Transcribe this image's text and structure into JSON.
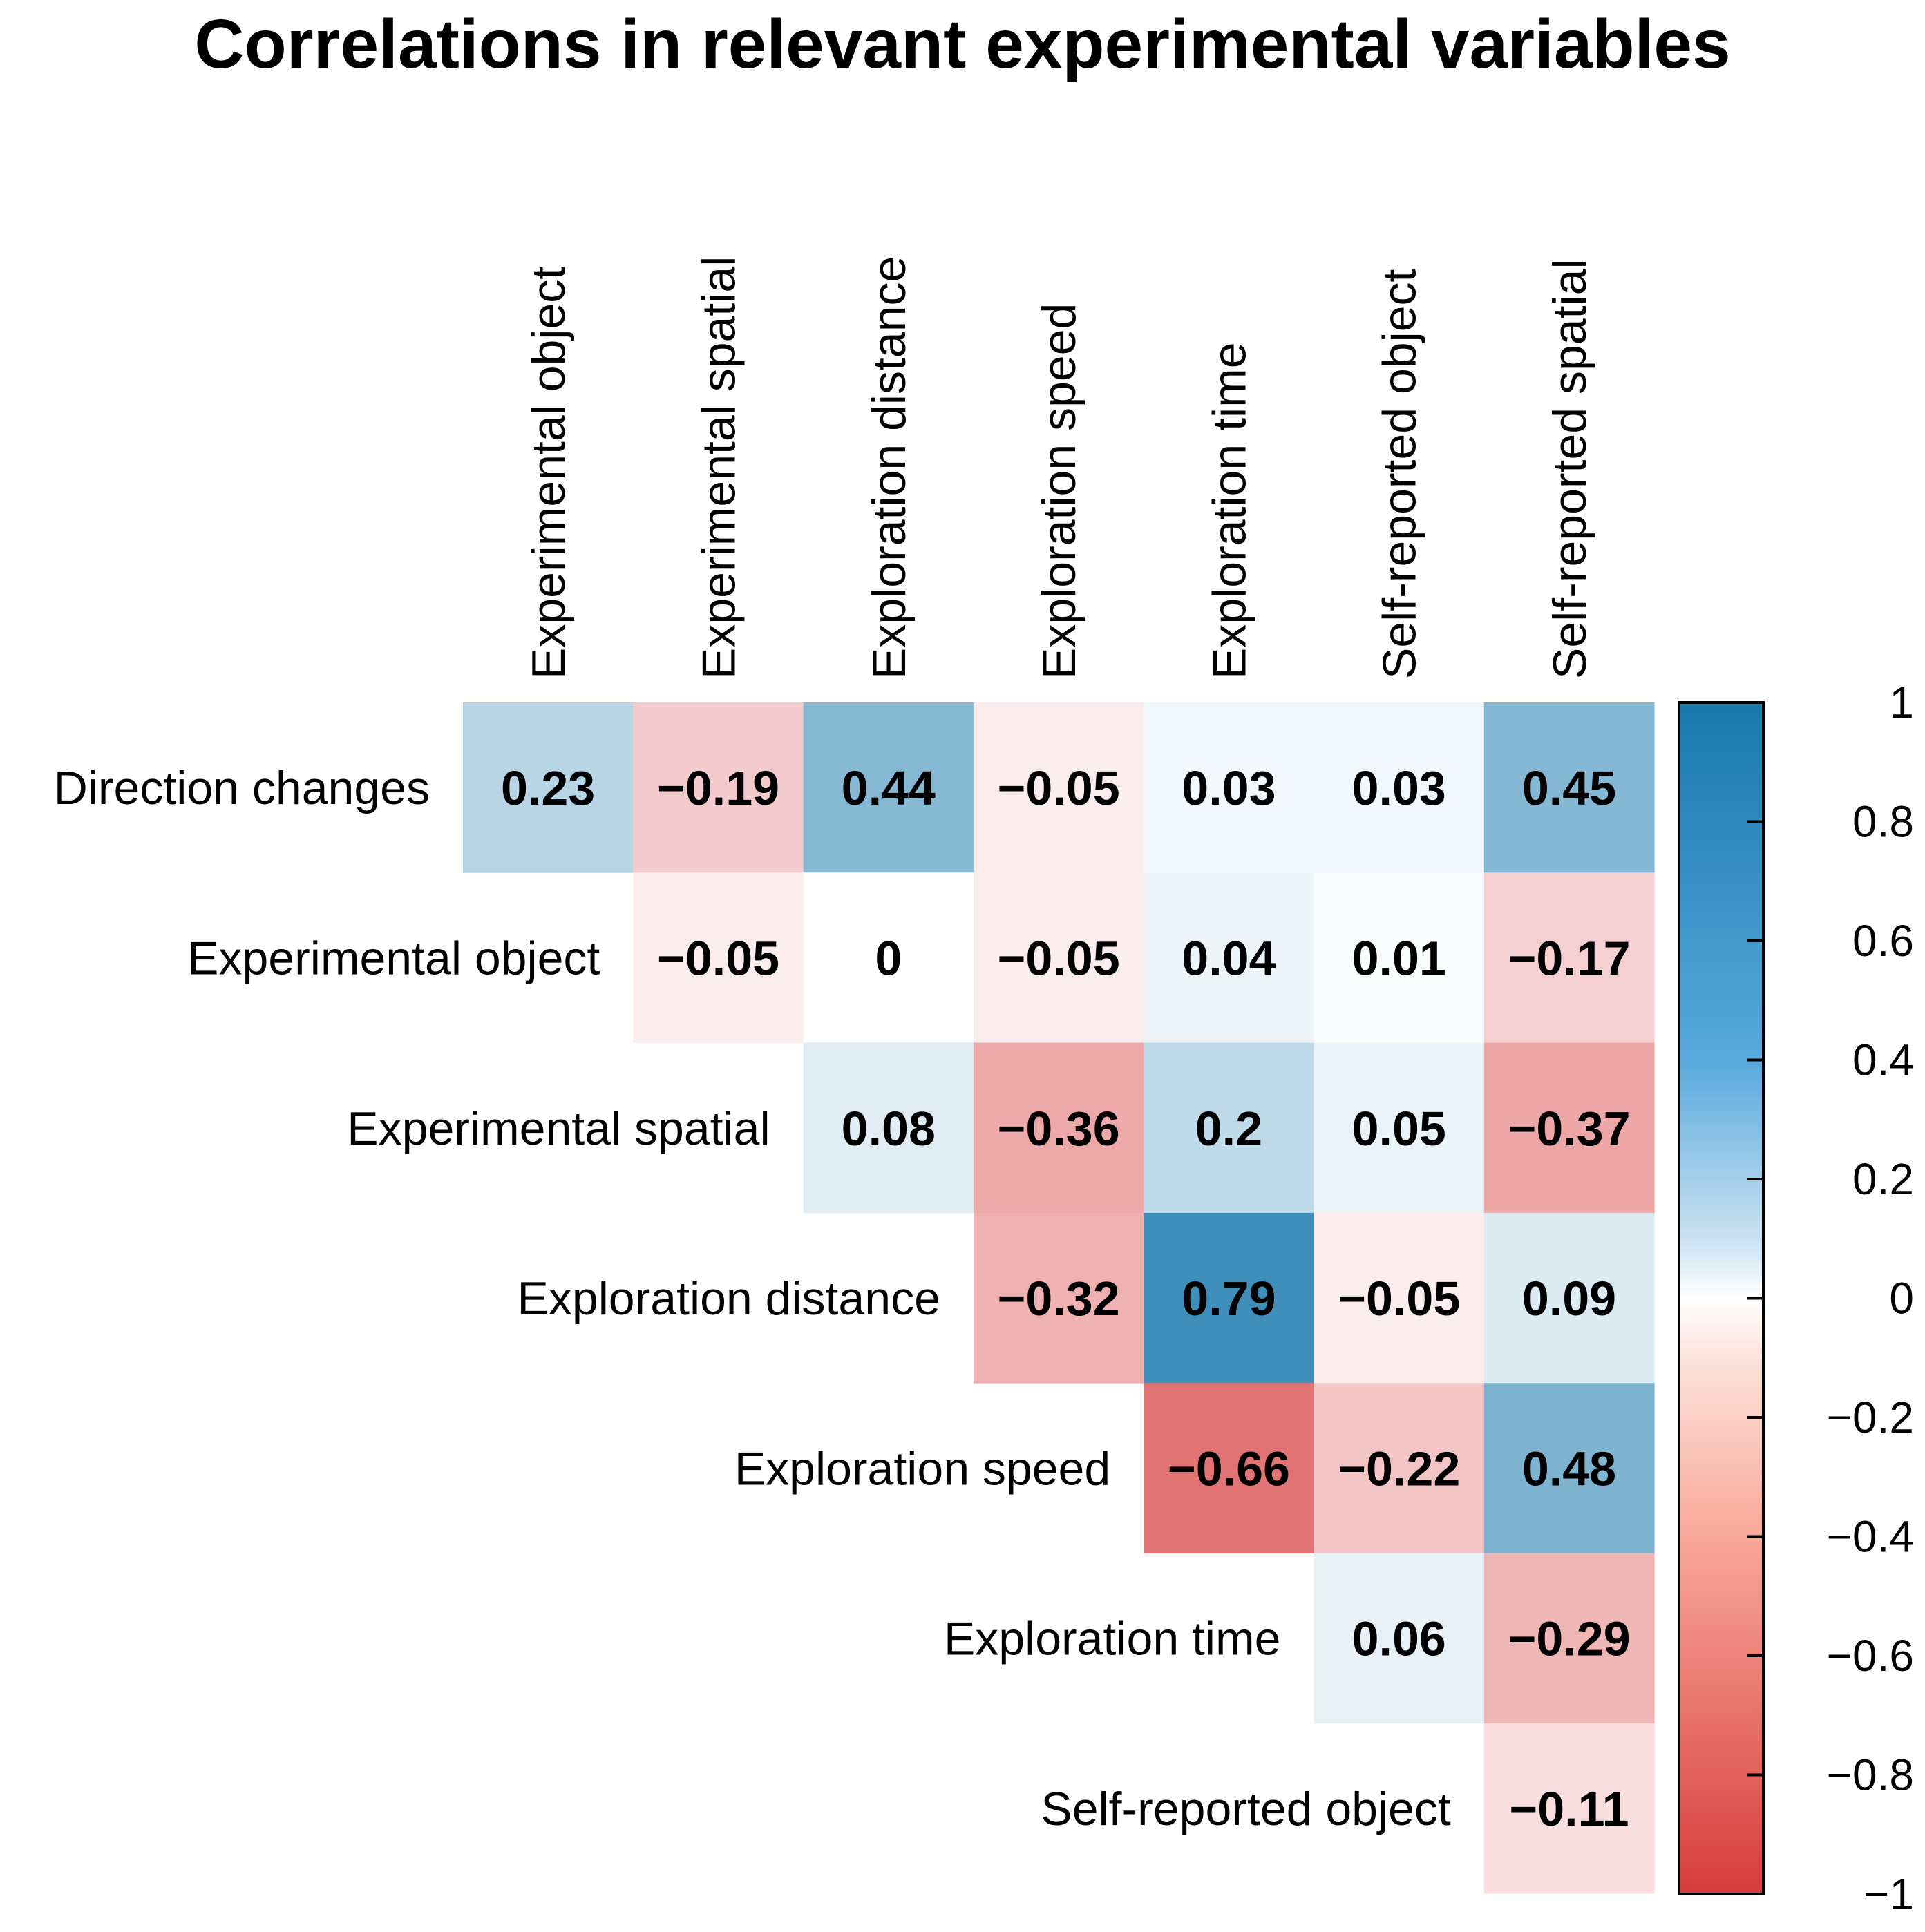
{
  "chart_data": {
    "type": "heatmap",
    "title": "Correlations in relevant experimental variables",
    "row_labels": [
      "Direction changes",
      "Experimental object",
      "Experimental spatial",
      "Exploration distance",
      "Exploration speed",
      "Exploration time",
      "Self-reported object"
    ],
    "col_labels": [
      "Experimental object",
      "Experimental spatial",
      "Exploration distance",
      "Exploration speed",
      "Exploration time",
      "Self-reported object",
      "Self-reported spatial"
    ],
    "cells": [
      {
        "row": 0,
        "col": 0,
        "value": 0.23,
        "label": "0.23"
      },
      {
        "row": 0,
        "col": 1,
        "value": -0.19,
        "label": "−0.19"
      },
      {
        "row": 0,
        "col": 2,
        "value": 0.44,
        "label": "0.44"
      },
      {
        "row": 0,
        "col": 3,
        "value": -0.05,
        "label": "−0.05"
      },
      {
        "row": 0,
        "col": 4,
        "value": 0.03,
        "label": "0.03"
      },
      {
        "row": 0,
        "col": 5,
        "value": 0.03,
        "label": "0.03"
      },
      {
        "row": 0,
        "col": 6,
        "value": 0.45,
        "label": "0.45"
      },
      {
        "row": 1,
        "col": 1,
        "value": -0.05,
        "label": "−0.05"
      },
      {
        "row": 1,
        "col": 2,
        "value": 0,
        "label": "0"
      },
      {
        "row": 1,
        "col": 3,
        "value": -0.05,
        "label": "−0.05"
      },
      {
        "row": 1,
        "col": 4,
        "value": 0.04,
        "label": "0.04"
      },
      {
        "row": 1,
        "col": 5,
        "value": 0.01,
        "label": "0.01"
      },
      {
        "row": 1,
        "col": 6,
        "value": -0.17,
        "label": "−0.17"
      },
      {
        "row": 2,
        "col": 2,
        "value": 0.08,
        "label": "0.08"
      },
      {
        "row": 2,
        "col": 3,
        "value": -0.36,
        "label": "−0.36"
      },
      {
        "row": 2,
        "col": 4,
        "value": 0.2,
        "label": "0.2"
      },
      {
        "row": 2,
        "col": 5,
        "value": 0.05,
        "label": "0.05"
      },
      {
        "row": 2,
        "col": 6,
        "value": -0.37,
        "label": "−0.37"
      },
      {
        "row": 3,
        "col": 3,
        "value": -0.32,
        "label": "−0.32"
      },
      {
        "row": 3,
        "col": 4,
        "value": 0.79,
        "label": "0.79"
      },
      {
        "row": 3,
        "col": 5,
        "value": -0.05,
        "label": "−0.05"
      },
      {
        "row": 3,
        "col": 6,
        "value": 0.09,
        "label": "0.09"
      },
      {
        "row": 4,
        "col": 4,
        "value": -0.66,
        "label": "−0.66"
      },
      {
        "row": 4,
        "col": 5,
        "value": -0.22,
        "label": "−0.22"
      },
      {
        "row": 4,
        "col": 6,
        "value": 0.48,
        "label": "0.48"
      },
      {
        "row": 5,
        "col": 5,
        "value": 0.06,
        "label": "0.06"
      },
      {
        "row": 5,
        "col": 6,
        "value": -0.29,
        "label": "−0.29"
      },
      {
        "row": 6,
        "col": 6,
        "value": -0.11,
        "label": "−0.11"
      }
    ],
    "color_scale": {
      "range": [
        -1,
        1
      ],
      "ticks": [
        1,
        0.8,
        0.6,
        0.4,
        0.2,
        0,
        -0.2,
        -0.4,
        -0.6,
        -0.8,
        -1
      ],
      "tick_labels": [
        "1",
        "0.8",
        "0.6",
        "0.4",
        "0.2",
        "0",
        "−0.2",
        "−0.4",
        "−0.6",
        "−0.8",
        "−1"
      ],
      "colors": {
        "negative": "#d73c3d",
        "neutral": "#ffffff",
        "positive": "#1878ad"
      }
    }
  }
}
